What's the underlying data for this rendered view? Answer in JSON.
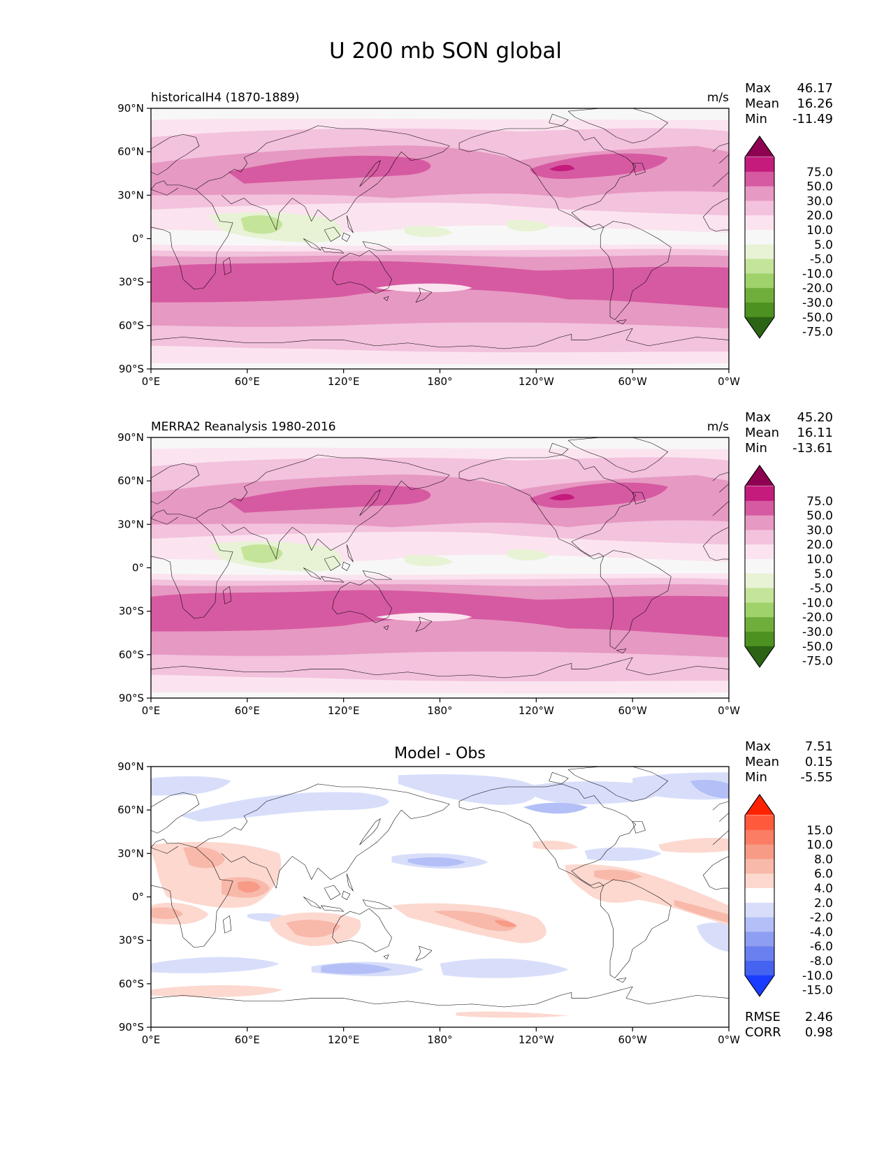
{
  "figure": {
    "title": "U 200 mb SON global"
  },
  "axes": {
    "x_ticks": [
      "0°E",
      "60°E",
      "120°E",
      "180°",
      "120°W",
      "60°W",
      "0°W"
    ],
    "y_ticks": [
      "90°N",
      "60°N",
      "30°N",
      "0°",
      "30°S",
      "60°S",
      "90°S"
    ]
  },
  "stat_labels": {
    "max": "Max",
    "mean": "Mean",
    "min": "Min",
    "rmse": "RMSE",
    "corr": "CORR"
  },
  "chart_data": [
    {
      "type": "heatmap",
      "title": "historicalH4 (1870-1889)",
      "units": "m/s",
      "stats": {
        "max": "46.17",
        "mean": "16.26",
        "min": "-11.49"
      },
      "levels": [
        "75.0",
        "50.0",
        "30.0",
        "20.0",
        "10.0",
        "5.0",
        "-5.0",
        "-10.0",
        "-20.0",
        "-30.0",
        "-50.0",
        "-75.0"
      ],
      "colors": [
        "#8e0152",
        "#c51b7d",
        "#d65aa1",
        "#e699c3",
        "#f3c2dd",
        "#fbe4ef",
        "#f7f7f7",
        "#e7f3d4",
        "#c4e49a",
        "#9fd26a",
        "#6fae3a",
        "#4d9221",
        "#2b6414"
      ],
      "xlim": [
        0,
        360
      ],
      "ylim": [
        -90,
        90
      ]
    },
    {
      "type": "heatmap",
      "title": "MERRA2 Reanalysis 1980-2016",
      "units": "m/s",
      "stats": {
        "max": "45.20",
        "mean": "16.11",
        "min": "-13.61"
      },
      "levels": [
        "75.0",
        "50.0",
        "30.0",
        "20.0",
        "10.0",
        "5.0",
        "-5.0",
        "-10.0",
        "-20.0",
        "-30.0",
        "-50.0",
        "-75.0"
      ],
      "colors": [
        "#8e0152",
        "#c51b7d",
        "#d65aa1",
        "#e699c3",
        "#f3c2dd",
        "#fbe4ef",
        "#f7f7f7",
        "#e7f3d4",
        "#c4e49a",
        "#9fd26a",
        "#6fae3a",
        "#4d9221",
        "#2b6414"
      ],
      "xlim": [
        0,
        360
      ],
      "ylim": [
        -90,
        90
      ]
    },
    {
      "type": "heatmap",
      "title": "Model - Obs",
      "units": "",
      "stats": {
        "max": "7.51",
        "mean": "0.15",
        "min": "-5.55"
      },
      "extra_stats": {
        "rmse": "2.46",
        "corr": "0.98"
      },
      "levels": [
        "15.0",
        "10.0",
        "8.0",
        "6.0",
        "4.0",
        "2.0",
        "-2.0",
        "-4.0",
        "-6.0",
        "-8.0",
        "-10.0",
        "-15.0"
      ],
      "colors": [
        "#ff2200",
        "#ff5a3c",
        "#fb7d63",
        "#f79b86",
        "#f8b9aa",
        "#fcd8cf",
        "#ffffff",
        "#d8defa",
        "#b3bff6",
        "#8e9ff3",
        "#6a80f1",
        "#4563f0",
        "#1a3cff"
      ],
      "xlim": [
        0,
        360
      ],
      "ylim": [
        -90,
        90
      ]
    }
  ]
}
